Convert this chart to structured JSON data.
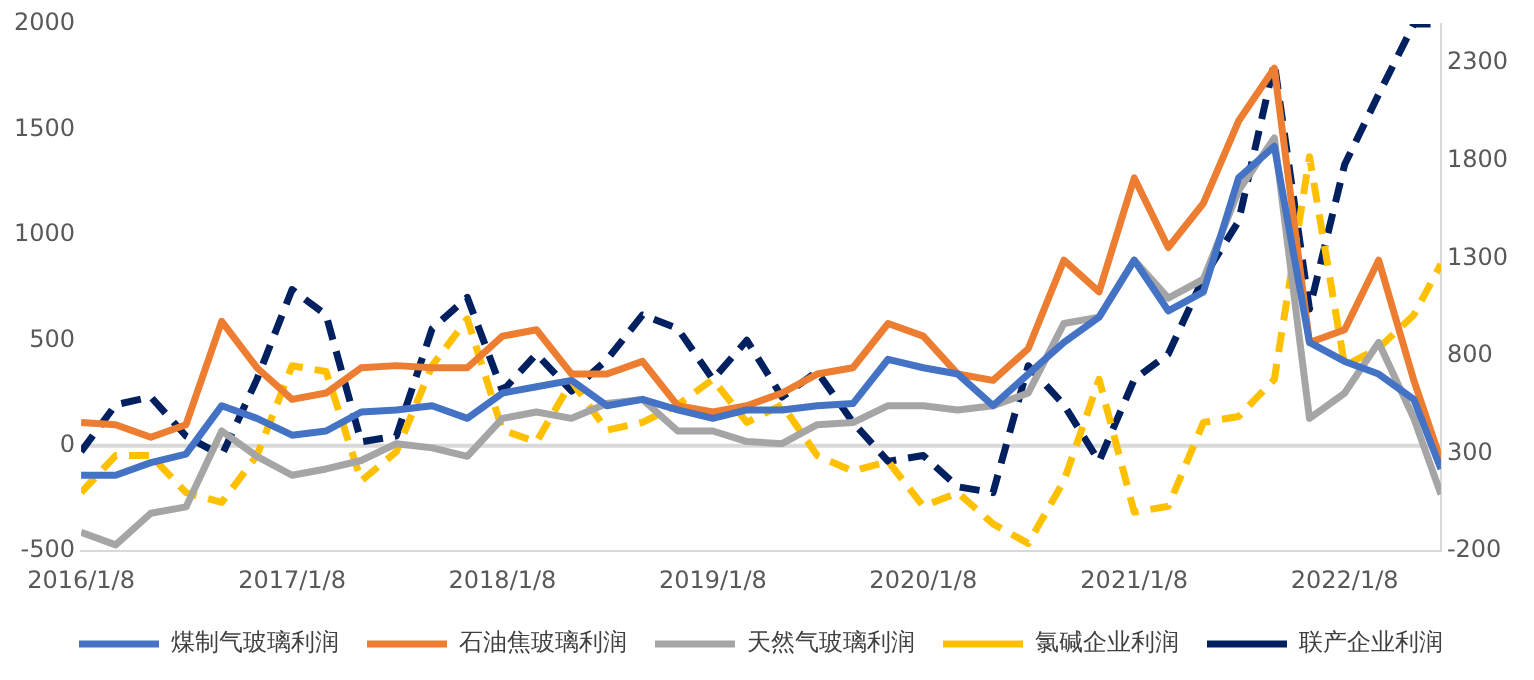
{
  "chart_data": {
    "type": "line",
    "line_style": "solid",
    "marker": "none",
    "grid": false,
    "legend": "bottom",
    "x": [
      "2016-01-08",
      "2016-03-08",
      "2016-05-08",
      "2016-07-08",
      "2016-09-08",
      "2016-11-08",
      "2017-01-08",
      "2017-03-08",
      "2017-05-08",
      "2017-07-08",
      "2017-09-08",
      "2017-11-08",
      "2018-01-08",
      "2018-03-08",
      "2018-05-08",
      "2018-07-08",
      "2018-09-08",
      "2018-11-08",
      "2019-01-08",
      "2019-03-08",
      "2019-05-08",
      "2019-07-08",
      "2019-09-08",
      "2019-11-08",
      "2020-01-08",
      "2020-03-08",
      "2020-05-08",
      "2020-07-08",
      "2020-09-08",
      "2020-11-08",
      "2021-01-08",
      "2021-03-08",
      "2021-05-08",
      "2021-07-08",
      "2021-09-08",
      "2021-11-08",
      "2022-01-08",
      "2022-03-08",
      "2022-05-08",
      "2022-06-24"
    ],
    "xlim": [
      "2016-01-08",
      "2022-06-24"
    ],
    "xticks": [
      {
        "value": "2016-01-08",
        "label": "2016/1/8"
      },
      {
        "value": "2017-01-08",
        "label": "2017/1/8"
      },
      {
        "value": "2018-01-08",
        "label": "2018/1/8"
      },
      {
        "value": "2019-01-08",
        "label": "2019/1/8"
      },
      {
        "value": "2020-01-08",
        "label": "2020/1/8"
      },
      {
        "value": "2021-01-08",
        "label": "2021/1/8"
      },
      {
        "value": "2022-01-08",
        "label": "2022/1/8"
      }
    ],
    "ylim": [
      -500,
      2000
    ],
    "yticks": [
      -500,
      0,
      500,
      1000,
      1500,
      2000
    ],
    "ref_lines": [
      {
        "axis": "y",
        "value": 0,
        "color": "#d9d9d9"
      }
    ],
    "y2lim": [
      -200,
      2500
    ],
    "y2ticks": [
      -200,
      300,
      800,
      1300,
      1800,
      2300
    ],
    "series": [
      {
        "name": "煤制气玻璃利润",
        "color": "#4472c4",
        "values": [
          -140,
          -140,
          -80,
          -40,
          190,
          130,
          50,
          70,
          160,
          170,
          190,
          130,
          250,
          280,
          310,
          190,
          220,
          170,
          130,
          170,
          170,
          190,
          200,
          410,
          370,
          340,
          190,
          340,
          490,
          610,
          880,
          640,
          730,
          1270,
          1420,
          490,
          400,
          340,
          220,
          -110
        ]
      },
      {
        "name": "石油焦玻璃利润",
        "color": "#ed7d31",
        "values": [
          110,
          100,
          40,
          100,
          590,
          370,
          220,
          250,
          370,
          380,
          370,
          370,
          520,
          550,
          340,
          340,
          400,
          190,
          160,
          190,
          250,
          340,
          370,
          580,
          520,
          340,
          310,
          460,
          880,
          730,
          1270,
          940,
          1150,
          1540,
          1790,
          490,
          550,
          880,
          310,
          -70
        ]
      },
      {
        "name": "天然气玻璃利润",
        "color": "#a5a5a5",
        "values": [
          -410,
          -470,
          -320,
          -290,
          70,
          -50,
          -140,
          -110,
          -70,
          10,
          -10,
          -50,
          130,
          160,
          130,
          200,
          220,
          70,
          70,
          20,
          10,
          100,
          110,
          190,
          190,
          170,
          190,
          250,
          580,
          610,
          880,
          700,
          790,
          1210,
          1460,
          130,
          250,
          490,
          130,
          -230
        ]
      },
      {
        "name": "氯碱企业利润",
        "color": "#ffc000",
        "axis": "y2",
        "line_style": "dashed",
        "values": [
          100,
          290,
          290,
          100,
          50,
          290,
          750,
          720,
          160,
          310,
          750,
          990,
          420,
          360,
          670,
          420,
          460,
          550,
          680,
          460,
          550,
          290,
          210,
          260,
          30,
          100,
          -60,
          -160,
          160,
          680,
          0,
          30,
          460,
          490,
          680,
          1820,
          750,
          840,
          1010,
          1270
        ]
      },
      {
        "name": "联产企业利润",
        "color": "#002060",
        "axis": "y2",
        "line_style": "dashed",
        "values": [
          310,
          550,
          590,
          390,
          290,
          680,
          1140,
          1010,
          360,
          390,
          940,
          1100,
          620,
          810,
          620,
          780,
          1010,
          940,
          680,
          880,
          590,
          720,
          460,
          260,
          290,
          130,
          100,
          750,
          550,
          260,
          680,
          810,
          1200,
          1490,
          2300,
          1040,
          1780,
          2140,
          2500,
          2500
        ]
      }
    ]
  }
}
